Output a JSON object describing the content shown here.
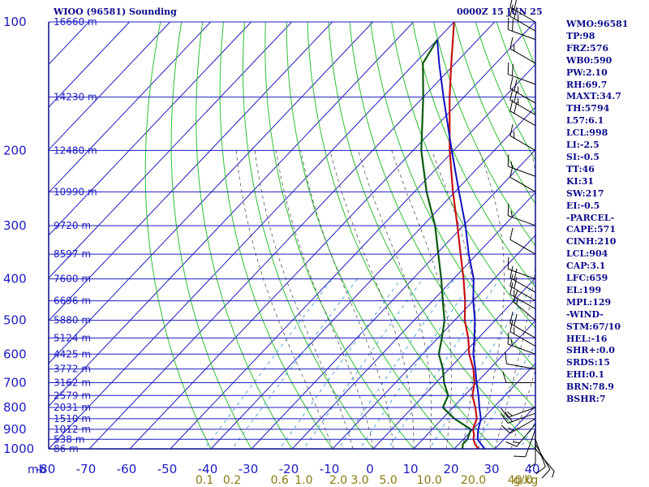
{
  "header": {
    "station": "WIOO (96581) Sounding",
    "datetime": "0000Z 15 JUN 25"
  },
  "indices": [
    "WMO:96581",
    "TP:98",
    "FRZ:576",
    "WB0:590",
    "PW:2.10",
    "RH:69.7",
    "MAXT:34.7",
    "TH:5794",
    "L57:6.1",
    "LCL:998",
    "LI:-2.5",
    "SI:-0.5",
    "TT:46",
    "KI:31",
    "SW:217",
    "EI:-0.5",
    "-PARCEL-",
    "CAPE:571",
    "CINH:210",
    "LCL:904",
    "CAP:3.1",
    "LFC:659",
    "EL:199",
    "MPL:129",
    "-WIND-",
    "STM:67/10",
    "HEL:-16",
    "SHR+:0.0",
    "SRDS:15",
    "EHI:0.1",
    "BRN:78.9",
    "BSHR:7"
  ],
  "colors": {
    "frame": "#0c0c8a",
    "isobar": "#1c1cc0",
    "isotherm": "#1c1cc0",
    "dry_adiabat": "#2fbf2f",
    "moist_adiabat": "#555555",
    "mixing_ratio": "#3a9ad9",
    "temperature": "#c81010",
    "dewpoint": "#0a5a0a",
    "parcel": "#1010c0",
    "wind_barb": "#000000",
    "mixing_ratio_label": "#8a7a10"
  },
  "chart_data": {
    "type": "skew-t log-p",
    "units": {
      "pressure": "mb",
      "temperature": "°C",
      "mixing_ratio": "g/kg",
      "height": "m"
    },
    "pressure_ticks": [
      100,
      200,
      300,
      400,
      500,
      600,
      700,
      800,
      900,
      1000
    ],
    "pressure_axis_label": "mb",
    "temperature_ticks": [
      -80,
      -70,
      -60,
      -50,
      -40,
      -30,
      -20,
      -10,
      0,
      10,
      20,
      30,
      40
    ],
    "temperature_range": [
      -80,
      40
    ],
    "pressure_range": [
      100,
      1050
    ],
    "height_labels": [
      {
        "p": 100,
        "label": "16660 m"
      },
      {
        "p": 150,
        "label": "14230 m"
      },
      {
        "p": 200,
        "label": "12480 m"
      },
      {
        "p": 250,
        "label": "10990 m"
      },
      {
        "p": 300,
        "label": "9720 m"
      },
      {
        "p": 350,
        "label": "8597 m"
      },
      {
        "p": 400,
        "label": "7600 m"
      },
      {
        "p": 450,
        "label": "6696 m"
      },
      {
        "p": 500,
        "label": "5880 m"
      },
      {
        "p": 550,
        "label": "5124 m"
      },
      {
        "p": 600,
        "label": "4425 m"
      },
      {
        "p": 650,
        "label": "3772 m"
      },
      {
        "p": 700,
        "label": "3162 m"
      },
      {
        "p": 750,
        "label": "2579 m"
      },
      {
        "p": 800,
        "label": "2031 m"
      },
      {
        "p": 850,
        "label": "1510 m"
      },
      {
        "p": 900,
        "label": "1012 m"
      },
      {
        "p": 950,
        "label": "538 m"
      },
      {
        "p": 1000,
        "label": "86 m"
      }
    ],
    "mixing_ratio_labels": [
      {
        "w": 0.1,
        "label": "0.1"
      },
      {
        "w": 0.2,
        "label": "0.2"
      },
      {
        "w": 0.6,
        "label": "0.6"
      },
      {
        "w": 1.0,
        "label": "1.0"
      },
      {
        "w": 2.0,
        "label": "2.0"
      },
      {
        "w": 3.0,
        "label": "3.0"
      },
      {
        "w": 5.0,
        "label": "5.0"
      },
      {
        "w": 10.0,
        "label": "10.0"
      },
      {
        "w": 20.0,
        "label": "20.0"
      },
      {
        "w": 40.0,
        "label": "40.0"
      }
    ],
    "mixing_ratio_unit_label": "g/kg",
    "series": [
      {
        "kind": "temperature",
        "points": [
          [
            1008,
            23.5
          ],
          [
            1000,
            26
          ],
          [
            975,
            24
          ],
          [
            950,
            22.5
          ],
          [
            925,
            21.5
          ],
          [
            900,
            20
          ],
          [
            850,
            18.5
          ],
          [
            800,
            15.5
          ],
          [
            750,
            12
          ],
          [
            700,
            9.5
          ],
          [
            650,
            6
          ],
          [
            600,
            1.5
          ],
          [
            550,
            -2.5
          ],
          [
            500,
            -7.5
          ],
          [
            450,
            -12
          ],
          [
            400,
            -17.5
          ],
          [
            350,
            -24
          ],
          [
            300,
            -31.5
          ],
          [
            250,
            -40.5
          ],
          [
            200,
            -51
          ],
          [
            150,
            -63.5
          ],
          [
            125,
            -71
          ],
          [
            100,
            -80
          ]
        ]
      },
      {
        "kind": "dewpoint",
        "points": [
          [
            1008,
            22
          ],
          [
            1000,
            22
          ],
          [
            975,
            21
          ],
          [
            950,
            21
          ],
          [
            900,
            19.5
          ],
          [
            850,
            13
          ],
          [
            800,
            7.5
          ],
          [
            750,
            6
          ],
          [
            700,
            2
          ],
          [
            650,
            -1.5
          ],
          [
            600,
            -6
          ],
          [
            550,
            -9
          ],
          [
            500,
            -12.5
          ],
          [
            450,
            -17.5
          ],
          [
            400,
            -23
          ],
          [
            350,
            -29.5
          ],
          [
            300,
            -37
          ],
          [
            250,
            -47
          ],
          [
            200,
            -58
          ],
          [
            150,
            -70
          ],
          [
            125,
            -78
          ],
          [
            110,
            -80
          ]
        ]
      },
      {
        "kind": "parcel",
        "points": [
          [
            1008,
            29
          ],
          [
            1000,
            27.5
          ],
          [
            950,
            23.5
          ],
          [
            904,
            21.5
          ],
          [
            850,
            19.5
          ],
          [
            800,
            16.5
          ],
          [
            750,
            13.5
          ],
          [
            700,
            10
          ],
          [
            650,
            6.5
          ],
          [
            600,
            2.5
          ],
          [
            550,
            -1
          ],
          [
            500,
            -5
          ],
          [
            450,
            -10
          ],
          [
            400,
            -15
          ],
          [
            350,
            -22
          ],
          [
            300,
            -29.5
          ],
          [
            250,
            -39
          ],
          [
            200,
            -50.5
          ],
          [
            150,
            -65
          ],
          [
            125,
            -74
          ],
          [
            110,
            -80
          ]
        ]
      }
    ],
    "winds": [
      {
        "p": 1000,
        "dir": 140,
        "spd": 5
      },
      {
        "p": 975,
        "dir": 150,
        "spd": 10
      },
      {
        "p": 950,
        "dir": 160,
        "spd": 10
      },
      {
        "p": 925,
        "dir": 180,
        "spd": 5
      },
      {
        "p": 900,
        "dir": 200,
        "spd": 10
      },
      {
        "p": 875,
        "dir": 220,
        "spd": 15
      },
      {
        "p": 850,
        "dir": 240,
        "spd": 15
      },
      {
        "p": 825,
        "dir": 250,
        "spd": 20
      },
      {
        "p": 800,
        "dir": 250,
        "spd": 15
      },
      {
        "p": 700,
        "dir": 270,
        "spd": 10
      },
      {
        "p": 650,
        "dir": 280,
        "spd": 10
      },
      {
        "p": 600,
        "dir": 290,
        "spd": 15
      },
      {
        "p": 575,
        "dir": 300,
        "spd": 15
      },
      {
        "p": 550,
        "dir": 300,
        "spd": 20
      },
      {
        "p": 500,
        "dir": 310,
        "spd": 15
      },
      {
        "p": 470,
        "dir": 300,
        "spd": 15
      },
      {
        "p": 450,
        "dir": 300,
        "spd": 20
      },
      {
        "p": 430,
        "dir": 300,
        "spd": 20
      },
      {
        "p": 400,
        "dir": 290,
        "spd": 10
      },
      {
        "p": 350,
        "dir": 300,
        "spd": 10
      },
      {
        "p": 300,
        "dir": 290,
        "spd": 15
      },
      {
        "p": 250,
        "dir": 300,
        "spd": 10
      },
      {
        "p": 230,
        "dir": 290,
        "spd": 15
      },
      {
        "p": 200,
        "dir": 300,
        "spd": 15
      },
      {
        "p": 175,
        "dir": 300,
        "spd": 20
      },
      {
        "p": 165,
        "dir": 300,
        "spd": 25
      },
      {
        "p": 155,
        "dir": 300,
        "spd": 25
      },
      {
        "p": 140,
        "dir": 290,
        "spd": 20
      },
      {
        "p": 125,
        "dir": 300,
        "spd": 15
      },
      {
        "p": 110,
        "dir": 290,
        "spd": 20
      },
      {
        "p": 105,
        "dir": 300,
        "spd": 25
      },
      {
        "p": 100,
        "dir": 300,
        "spd": 20
      }
    ]
  }
}
